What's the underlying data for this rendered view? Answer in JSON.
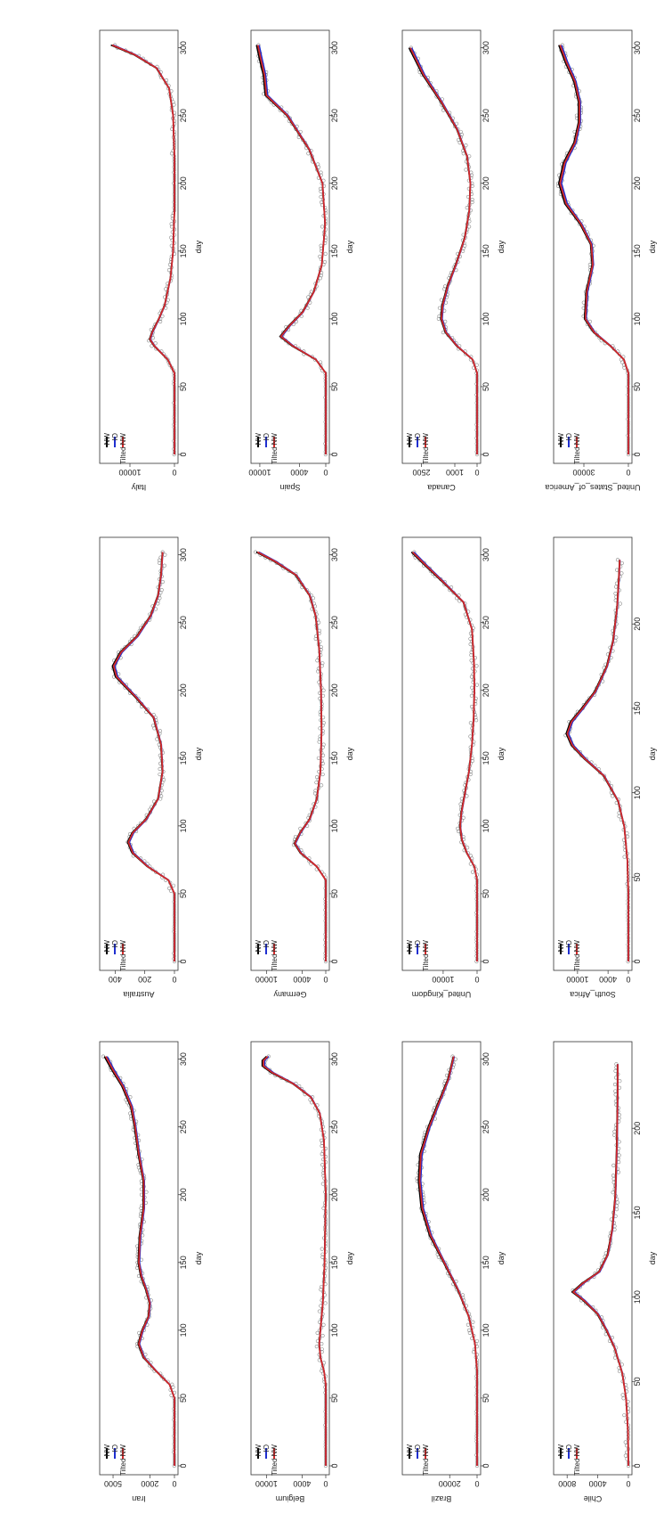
{
  "layout": {
    "columns": [
      "col-right",
      "col-middle",
      "col-left"
    ]
  },
  "legend_labels": [
    "NW",
    "IO",
    "Tilted NW"
  ],
  "colors": {
    "nw": "#000000",
    "io": "#1f2fd0",
    "tilted_nw": "#d22a2a",
    "points": "#8a8a8a"
  },
  "chart_data": [
    {
      "type": "scatter",
      "ylabel": "Italy",
      "xlabel": "day",
      "xlim": [
        0,
        305
      ],
      "xticks": [
        0,
        50,
        100,
        150,
        200,
        250,
        300
      ],
      "ylim": [
        0,
        16000
      ],
      "yticks": [
        0,
        10000
      ],
      "series": [
        {
          "name": "NW"
        },
        {
          "name": "IO"
        },
        {
          "name": "Tilted NW"
        }
      ],
      "curve": [
        [
          0,
          0
        ],
        [
          60,
          0
        ],
        [
          70,
          1500
        ],
        [
          80,
          4500
        ],
        [
          85,
          5500
        ],
        [
          90,
          5000
        ],
        [
          100,
          3500
        ],
        [
          110,
          2200
        ],
        [
          130,
          900
        ],
        [
          150,
          300
        ],
        [
          180,
          0
        ],
        [
          220,
          0
        ],
        [
          250,
          300
        ],
        [
          270,
          1200
        ],
        [
          285,
          4000
        ],
        [
          295,
          9000
        ],
        [
          302,
          14000
        ]
      ]
    },
    {
      "type": "scatter",
      "ylabel": "Spain",
      "xlabel": "day",
      "xlim": [
        0,
        305
      ],
      "xticks": [
        0,
        50,
        100,
        150,
        200,
        250,
        300
      ],
      "ylim": [
        0,
        10800
      ],
      "yticks": [
        0,
        4000,
        10000
      ],
      "series": [
        {
          "name": "NW"
        },
        {
          "name": "IO"
        },
        {
          "name": "Tilted NW"
        }
      ],
      "curve": [
        [
          0,
          0
        ],
        [
          60,
          0
        ],
        [
          70,
          1500
        ],
        [
          80,
          5000
        ],
        [
          87,
          6800
        ],
        [
          95,
          5500
        ],
        [
          105,
          3500
        ],
        [
          120,
          1800
        ],
        [
          140,
          600
        ],
        [
          170,
          100
        ],
        [
          200,
          500
        ],
        [
          225,
          2500
        ],
        [
          250,
          5800
        ],
        [
          265,
          9000
        ],
        [
          280,
          9300
        ],
        [
          295,
          10000
        ],
        [
          302,
          10300
        ]
      ]
    },
    {
      "type": "scatter",
      "ylabel": "Canada",
      "xlabel": "day",
      "xlim": [
        0,
        305
      ],
      "xticks": [
        0,
        50,
        100,
        150,
        200,
        250,
        300
      ],
      "ylim": [
        0,
        3200
      ],
      "yticks": [
        0,
        1000,
        2500
      ],
      "series": [
        {
          "name": "NW"
        },
        {
          "name": "IO"
        },
        {
          "name": "Tilted NW"
        }
      ],
      "curve": [
        [
          0,
          0
        ],
        [
          60,
          0
        ],
        [
          70,
          200
        ],
        [
          80,
          900
        ],
        [
          90,
          1400
        ],
        [
          100,
          1600
        ],
        [
          110,
          1550
        ],
        [
          125,
          1300
        ],
        [
          140,
          950
        ],
        [
          160,
          550
        ],
        [
          180,
          350
        ],
        [
          200,
          300
        ],
        [
          220,
          450
        ],
        [
          240,
          900
        ],
        [
          260,
          1600
        ],
        [
          280,
          2400
        ],
        [
          300,
          3000
        ]
      ]
    },
    {
      "type": "scatter",
      "ylabel": "United_States_of_America",
      "xlabel": "day",
      "xlim": [
        0,
        305
      ],
      "xticks": [
        0,
        50,
        100,
        150,
        200,
        250,
        300
      ],
      "ylim": [
        0,
        48000
      ],
      "yticks": [
        0,
        30000
      ],
      "series": [
        {
          "name": "NW"
        },
        {
          "name": "IO"
        },
        {
          "name": "Tilted NW"
        }
      ],
      "curve": [
        [
          0,
          0
        ],
        [
          60,
          0
        ],
        [
          70,
          3000
        ],
        [
          80,
          12000
        ],
        [
          90,
          23000
        ],
        [
          100,
          29000
        ],
        [
          120,
          28000
        ],
        [
          140,
          24000
        ],
        [
          155,
          25000
        ],
        [
          170,
          32000
        ],
        [
          185,
          42000
        ],
        [
          200,
          46000
        ],
        [
          215,
          43000
        ],
        [
          230,
          36000
        ],
        [
          245,
          33000
        ],
        [
          260,
          33000
        ],
        [
          275,
          36000
        ],
        [
          290,
          42000
        ],
        [
          302,
          46000
        ]
      ]
    },
    {
      "type": "scatter",
      "ylabel": "Australia",
      "xlabel": "day",
      "xlim": [
        0,
        305
      ],
      "xticks": [
        0,
        50,
        100,
        150,
        200,
        250,
        300
      ],
      "ylim": [
        0,
        480
      ],
      "yticks": [
        0,
        200,
        400
      ],
      "series": [
        {
          "name": "NW"
        },
        {
          "name": "IO"
        },
        {
          "name": "Tilted NW"
        }
      ],
      "curve": [
        [
          0,
          0
        ],
        [
          50,
          0
        ],
        [
          60,
          40
        ],
        [
          70,
          180
        ],
        [
          80,
          280
        ],
        [
          88,
          310
        ],
        [
          95,
          280
        ],
        [
          105,
          190
        ],
        [
          120,
          110
        ],
        [
          140,
          80
        ],
        [
          160,
          90
        ],
        [
          180,
          140
        ],
        [
          195,
          260
        ],
        [
          210,
          390
        ],
        [
          218,
          410
        ],
        [
          228,
          360
        ],
        [
          240,
          250
        ],
        [
          255,
          160
        ],
        [
          270,
          110
        ],
        [
          285,
          90
        ],
        [
          302,
          80
        ]
      ]
    },
    {
      "type": "scatter",
      "ylabel": "Germany",
      "xlabel": "day",
      "xlim": [
        0,
        305
      ],
      "xticks": [
        0,
        50,
        100,
        150,
        200,
        250,
        300
      ],
      "ylim": [
        0,
        12000
      ],
      "yticks": [
        0,
        4000,
        10000
      ],
      "series": [
        {
          "name": "NW"
        },
        {
          "name": "IO"
        },
        {
          "name": "Tilted NW"
        }
      ],
      "curve": [
        [
          0,
          0
        ],
        [
          60,
          0
        ],
        [
          70,
          1500
        ],
        [
          80,
          4200
        ],
        [
          87,
          5200
        ],
        [
          95,
          4300
        ],
        [
          105,
          2700
        ],
        [
          120,
          1500
        ],
        [
          140,
          900
        ],
        [
          170,
          700
        ],
        [
          200,
          800
        ],
        [
          230,
          1100
        ],
        [
          255,
          1700
        ],
        [
          270,
          2700
        ],
        [
          285,
          5000
        ],
        [
          295,
          8500
        ],
        [
          302,
          11500
        ]
      ]
    },
    {
      "type": "scatter",
      "ylabel": "United_Kingdom",
      "xlabel": "day",
      "xlim": [
        0,
        305
      ],
      "xticks": [
        0,
        50,
        100,
        150,
        200,
        250,
        300
      ],
      "ylim": [
        0,
        21000
      ],
      "yticks": [
        0,
        10000
      ],
      "series": [
        {
          "name": "NW"
        },
        {
          "name": "IO"
        },
        {
          "name": "Tilted NW"
        }
      ],
      "curve": [
        [
          0,
          0
        ],
        [
          60,
          0
        ],
        [
          70,
          800
        ],
        [
          80,
          3000
        ],
        [
          90,
          4500
        ],
        [
          100,
          5000
        ],
        [
          110,
          4600
        ],
        [
          125,
          3500
        ],
        [
          140,
          2400
        ],
        [
          160,
          1500
        ],
        [
          180,
          1000
        ],
        [
          200,
          800
        ],
        [
          220,
          900
        ],
        [
          245,
          1500
        ],
        [
          265,
          4000
        ],
        [
          280,
          10000
        ],
        [
          292,
          15000
        ],
        [
          302,
          19000
        ]
      ]
    },
    {
      "type": "scatter",
      "ylabel": "South_Africa",
      "xlabel": "day",
      "xlim": [
        0,
        245
      ],
      "xticks": [
        0,
        50,
        100,
        150,
        200
      ],
      "ylim": [
        0,
        14000
      ],
      "yticks": [
        0,
        4000,
        10000
      ],
      "series": [
        {
          "name": "NW"
        },
        {
          "name": "IO"
        },
        {
          "name": "Tilted NW"
        }
      ],
      "curve": [
        [
          0,
          0
        ],
        [
          40,
          0
        ],
        [
          60,
          200
        ],
        [
          80,
          800
        ],
        [
          95,
          2000
        ],
        [
          110,
          4800
        ],
        [
          120,
          8500
        ],
        [
          128,
          11000
        ],
        [
          135,
          12000
        ],
        [
          142,
          11200
        ],
        [
          150,
          9000
        ],
        [
          160,
          6500
        ],
        [
          175,
          4200
        ],
        [
          190,
          3000
        ],
        [
          210,
          2200
        ],
        [
          225,
          1900
        ],
        [
          238,
          1700
        ]
      ]
    },
    {
      "type": "scatter",
      "ylabel": "Iran",
      "xlabel": "day",
      "xlim": [
        0,
        305
      ],
      "xticks": [
        0,
        50,
        100,
        150,
        200,
        250,
        300
      ],
      "ylim": [
        0,
        5800
      ],
      "yticks": [
        0,
        2000,
        5000
      ],
      "series": [
        {
          "name": "NW"
        },
        {
          "name": "IO"
        },
        {
          "name": "Tilted NW"
        }
      ],
      "curve": [
        [
          0,
          0
        ],
        [
          50,
          0
        ],
        [
          60,
          400
        ],
        [
          70,
          1500
        ],
        [
          80,
          2500
        ],
        [
          90,
          2900
        ],
        [
          100,
          2600
        ],
        [
          110,
          2100
        ],
        [
          120,
          2000
        ],
        [
          130,
          2300
        ],
        [
          140,
          2700
        ],
        [
          150,
          2900
        ],
        [
          170,
          2800
        ],
        [
          190,
          2500
        ],
        [
          210,
          2500
        ],
        [
          230,
          2900
        ],
        [
          250,
          3200
        ],
        [
          265,
          3500
        ],
        [
          280,
          4200
        ],
        [
          292,
          5000
        ],
        [
          302,
          5600
        ]
      ]
    },
    {
      "type": "scatter",
      "ylabel": "Belgium",
      "xlabel": "day",
      "xlim": [
        0,
        305
      ],
      "xticks": [
        0,
        50,
        100,
        150,
        200,
        250,
        300
      ],
      "ylim": [
        0,
        12000
      ],
      "yticks": [
        0,
        4000,
        10000
      ],
      "series": [
        {
          "name": "NW"
        },
        {
          "name": "IO"
        },
        {
          "name": "Tilted NW"
        }
      ],
      "curve": [
        [
          0,
          0
        ],
        [
          60,
          0
        ],
        [
          70,
          300
        ],
        [
          80,
          900
        ],
        [
          90,
          1100
        ],
        [
          100,
          900
        ],
        [
          120,
          500
        ],
        [
          150,
          200
        ],
        [
          200,
          0
        ],
        [
          240,
          300
        ],
        [
          260,
          1000
        ],
        [
          272,
          2500
        ],
        [
          282,
          5500
        ],
        [
          290,
          9000
        ],
        [
          295,
          10500
        ],
        [
          299,
          10500
        ],
        [
          302,
          9800
        ]
      ]
    },
    {
      "type": "scatter",
      "ylabel": "Brazil",
      "xlabel": "day",
      "xlim": [
        0,
        305
      ],
      "xticks": [
        0,
        50,
        100,
        150,
        200,
        250,
        300
      ],
      "ylim": [
        0,
        52000
      ],
      "yticks": [
        0,
        20000
      ],
      "series": [
        {
          "name": "NW"
        },
        {
          "name": "IO"
        },
        {
          "name": "Tilted NW"
        }
      ],
      "curve": [
        [
          0,
          0
        ],
        [
          70,
          0
        ],
        [
          90,
          1500
        ],
        [
          110,
          6000
        ],
        [
          130,
          14000
        ],
        [
          150,
          24000
        ],
        [
          170,
          34000
        ],
        [
          190,
          40000
        ],
        [
          210,
          42000
        ],
        [
          230,
          41000
        ],
        [
          250,
          35000
        ],
        [
          270,
          27000
        ],
        [
          285,
          21000
        ],
        [
          302,
          17000
        ]
      ]
    },
    {
      "type": "scatter",
      "ylabel": "Chile",
      "xlabel": "day",
      "xlim": [
        0,
        245
      ],
      "xticks": [
        0,
        50,
        100,
        150,
        200
      ],
      "ylim": [
        0,
        9300
      ],
      "yticks": [
        0,
        4000,
        8000
      ],
      "series": [
        {
          "name": "NW"
        },
        {
          "name": "IO"
        },
        {
          "name": "Tilted NW"
        }
      ],
      "curve": [
        [
          0,
          0
        ],
        [
          20,
          50
        ],
        [
          40,
          300
        ],
        [
          55,
          800
        ],
        [
          70,
          1800
        ],
        [
          80,
          2800
        ],
        [
          90,
          4000
        ],
        [
          98,
          5800
        ],
        [
          103,
          7200
        ],
        [
          108,
          6000
        ],
        [
          115,
          3800
        ],
        [
          125,
          2700
        ],
        [
          140,
          2100
        ],
        [
          160,
          1700
        ],
        [
          190,
          1500
        ],
        [
          220,
          1400
        ],
        [
          238,
          1400
        ]
      ]
    }
  ]
}
